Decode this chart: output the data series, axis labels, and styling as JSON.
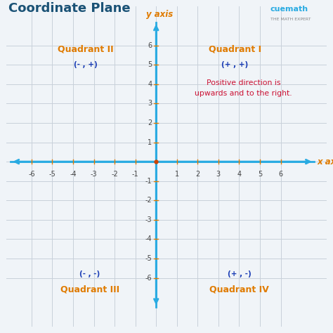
{
  "title": "Coordinate Plane",
  "title_color": "#1a5276",
  "title_fontsize": 13,
  "background_color": "#f0f4f8",
  "grid_color": "#c8d0da",
  "axis_color": "#29abe2",
  "tick_color": "#e07b00",
  "tick_label_color": "#444444",
  "xlim": [
    -7.2,
    8.2
  ],
  "ylim": [
    -8.5,
    8.0
  ],
  "x_ticks": [
    -6,
    -5,
    -4,
    -3,
    -2,
    -1,
    1,
    2,
    3,
    4,
    5,
    6
  ],
  "y_ticks": [
    -6,
    -5,
    -4,
    -3,
    -2,
    -1,
    1,
    2,
    3,
    4,
    5,
    6
  ],
  "x_axis_label": "x axis",
  "y_axis_label": "y axis",
  "axis_label_color": "#e07b00",
  "quadrant_label_color": "#e07b00",
  "quadrant_sign_color": "#1a3db5",
  "annotation_text": "Positive direction is\nupwards and to the right.",
  "annotation_color": "#cc1133",
  "origin_dot_color": "#cc4400",
  "cuemath_color": "#29abe2",
  "cuemath_sub_color": "#888888"
}
